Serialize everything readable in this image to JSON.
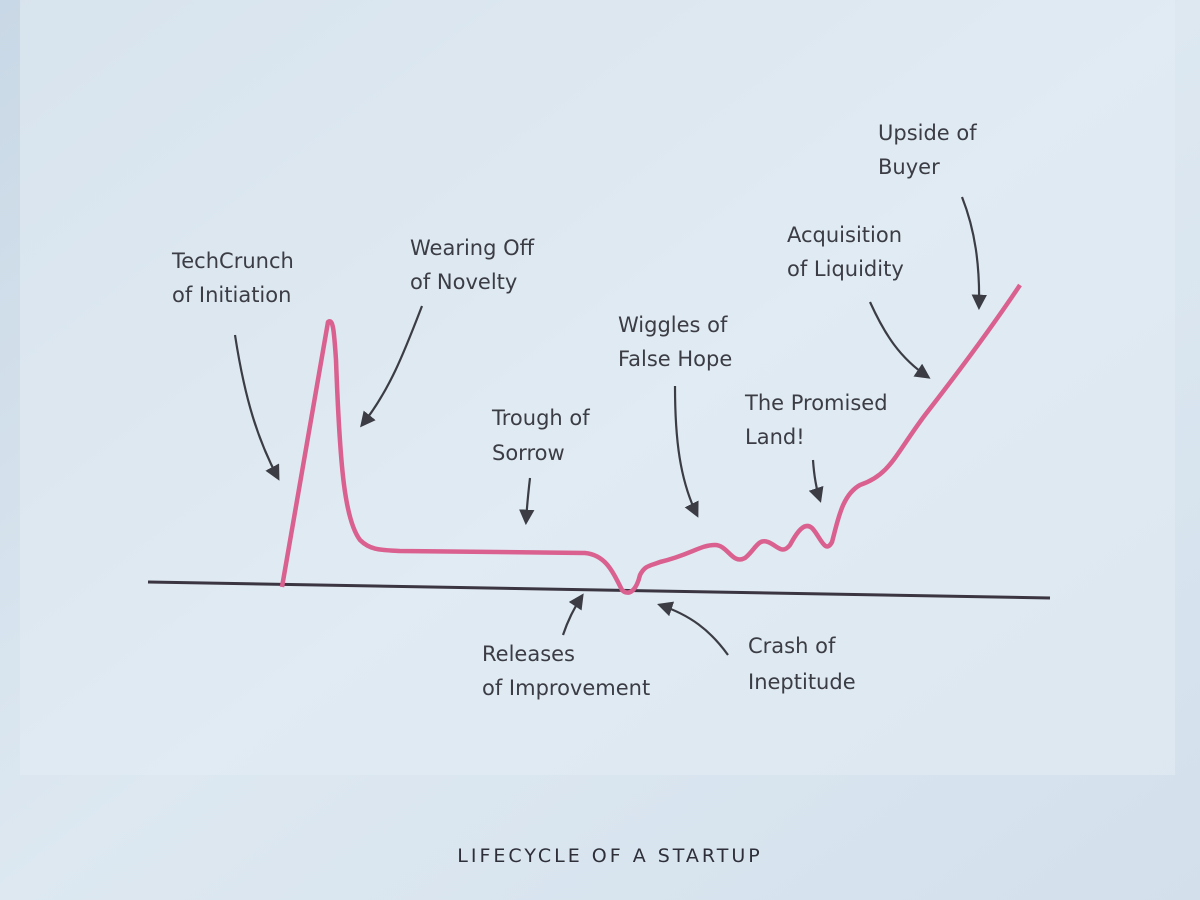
{
  "annotations": [
    {
      "lines": [
        "TechCrunch",
        "of Initiation"
      ]
    },
    {
      "lines": [
        "Wearing Off",
        "of Novelty"
      ]
    },
    {
      "lines": [
        "Trough of",
        "Sorrow"
      ]
    },
    {
      "lines": [
        "Wiggles of",
        "False Hope"
      ]
    },
    {
      "lines": [
        "The Promised",
        "Land!"
      ]
    },
    {
      "lines": [
        "Acquisition",
        "of Liquidity"
      ]
    },
    {
      "lines": [
        "Upside of",
        "Buyer"
      ]
    },
    {
      "lines": [
        "Releases",
        "of Improvement"
      ]
    },
    {
      "lines": [
        "Crash of",
        "Ineptitude"
      ]
    }
  ],
  "caption": "LIFECYCLE OF A STARTUP"
}
